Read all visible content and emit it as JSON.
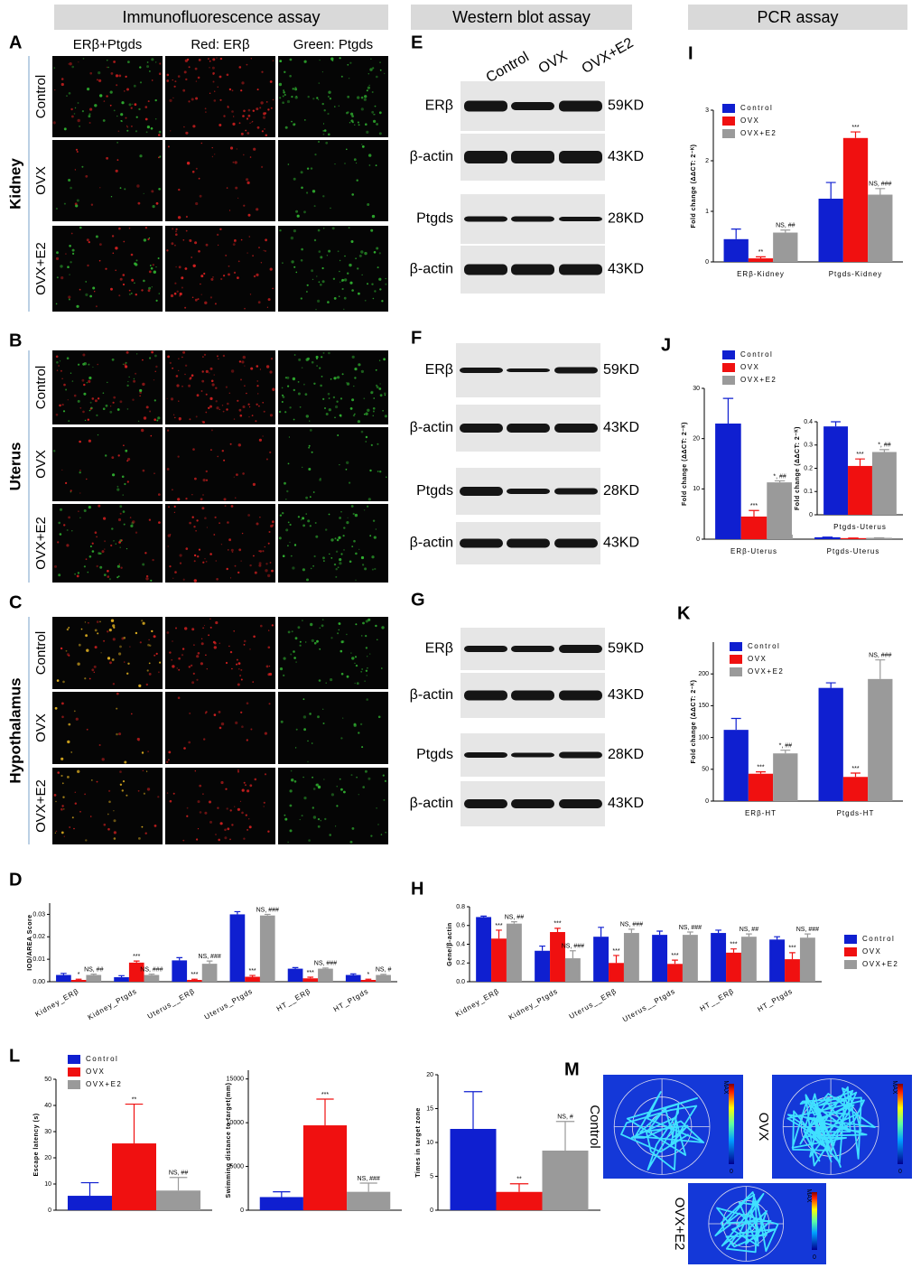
{
  "headers": [
    "Immunofluorescence assay",
    "Western blot assay",
    "PCR  assay"
  ],
  "panel_letters": [
    "A",
    "B",
    "C",
    "D",
    "E",
    "F",
    "G",
    "H",
    "I",
    "J",
    "K",
    "L",
    "M"
  ],
  "immunofluorescence": {
    "columns": [
      "ERβ+Ptgds",
      "Red: ERβ",
      "Green: Ptgds"
    ],
    "tissues": [
      {
        "name": "Kidney",
        "rows": [
          "Control",
          "OVX",
          "OVX+E2"
        ]
      },
      {
        "name": "Uterus",
        "rows": [
          "Control",
          "OVX",
          "OVX+E2"
        ]
      },
      {
        "name": "Hypothalamus",
        "rows": [
          "Control",
          "OVX",
          "OVX+E2"
        ]
      }
    ]
  },
  "western_blot": {
    "lanes": [
      "Control",
      "OVX",
      "OVX+E2"
    ],
    "blots": [
      {
        "rows": [
          {
            "label": "ERβ",
            "size": "59KD"
          },
          {
            "label": "β-actin",
            "size": "43KD"
          },
          {
            "label": "Ptgds",
            "size": "28KD"
          },
          {
            "label": "β-actin",
            "size": "43KD"
          }
        ]
      },
      {
        "rows": [
          {
            "label": "ERβ",
            "size": "59KD"
          },
          {
            "label": "β-actin",
            "size": "43KD"
          },
          {
            "label": "Ptgds",
            "size": "28KD"
          },
          {
            "label": "β-actin",
            "size": "43KD"
          }
        ]
      },
      {
        "rows": [
          {
            "label": "ERβ",
            "size": "59KD"
          },
          {
            "label": "β-actin",
            "size": "43KD"
          },
          {
            "label": "Ptgds",
            "size": "28KD"
          },
          {
            "label": "β-actin",
            "size": "43KD"
          }
        ]
      }
    ]
  },
  "water_maze": {
    "groups": [
      "Control",
      "OVX",
      "OVX+E2"
    ],
    "scale_max": "MAX",
    "scale_min": "0"
  },
  "chart_data": [
    {
      "type": "bar",
      "ylabel": "Fold change (ΔΔCT: 2⁻ᴷ)",
      "categories": [
        "ERβ-Kidney",
        "Ptgds-Kidney"
      ],
      "ylim": [
        0,
        3
      ],
      "yticks": [
        0,
        1,
        2,
        3
      ],
      "legend": "upper left",
      "series": [
        {
          "name": "Control",
          "color": "#0f1fd0",
          "values": [
            0.45,
            1.25
          ],
          "errors": [
            0.2,
            0.32
          ],
          "annotations": [
            null,
            null
          ]
        },
        {
          "name": "OVX",
          "color": "#f01010",
          "values": [
            0.07,
            2.45
          ],
          "errors": [
            0.03,
            0.12
          ],
          "annotations": [
            "**",
            "***"
          ]
        },
        {
          "name": "OVX+E2",
          "color": "#9a9a9a",
          "values": [
            0.58,
            1.33
          ],
          "errors": [
            0.05,
            0.12
          ],
          "annotations": [
            "NS, ##",
            "NS, ###"
          ]
        }
      ]
    },
    {
      "type": "bar",
      "ylabel": "Fold change (ΔΔCT: 2⁻ᴷ)",
      "categories": [
        "ERβ-Uterus",
        "Ptgds-Uterus"
      ],
      "ylim": [
        0,
        30
      ],
      "yticks": [
        0,
        10,
        20,
        30
      ],
      "legend": "upper left",
      "series": [
        {
          "name": "Control",
          "color": "#0f1fd0",
          "values": [
            23,
            0.38
          ],
          "errors": [
            5,
            0.02
          ],
          "annotations": [
            null,
            null
          ]
        },
        {
          "name": "OVX",
          "color": "#f01010",
          "values": [
            4.5,
            0.21
          ],
          "errors": [
            1.2,
            0.03
          ],
          "annotations": [
            "***",
            null
          ]
        },
        {
          "name": "OVX+E2",
          "color": "#9a9a9a",
          "values": [
            11.3,
            0.27
          ],
          "errors": [
            0.3,
            0.01
          ],
          "annotations": [
            "*, ##",
            null
          ]
        }
      ]
    },
    {
      "type": "bar",
      "ylabel": "Fold change (ΔΔCT: 2⁻ᴷ)",
      "categories": [
        "Ptgds-Uterus"
      ],
      "ylim": [
        0,
        0.4
      ],
      "yticks": [
        0,
        0.1,
        0.2,
        0.3,
        0.4
      ],
      "series": [
        {
          "color": "#0f1fd0",
          "values": [
            0.38
          ],
          "errors": [
            0.02
          ],
          "annotations": [
            null
          ]
        },
        {
          "color": "#f01010",
          "values": [
            0.21
          ],
          "errors": [
            0.03
          ],
          "annotations": [
            "***"
          ]
        },
        {
          "color": "#9a9a9a",
          "values": [
            0.27
          ],
          "errors": [
            0.01
          ],
          "annotations": [
            "*, ##"
          ]
        }
      ]
    },
    {
      "type": "bar",
      "ylabel": "Fold change (ΔΔCT: 2⁻ᴷ)",
      "categories": [
        "ERβ-HT",
        "Ptgds-HT"
      ],
      "ylim": [
        0,
        250
      ],
      "yticks": [
        0,
        50,
        100,
        150,
        200
      ],
      "legend": "upper left",
      "series": [
        {
          "name": "Control",
          "color": "#0f1fd0",
          "values": [
            112,
            178
          ],
          "errors": [
            18,
            8
          ],
          "annotations": [
            null,
            null
          ]
        },
        {
          "name": "OVX",
          "color": "#f01010",
          "values": [
            43,
            38
          ],
          "errors": [
            3,
            6
          ],
          "annotations": [
            "***",
            "***"
          ]
        },
        {
          "name": "OVX+E2",
          "color": "#9a9a9a",
          "values": [
            75,
            192
          ],
          "errors": [
            5,
            30
          ],
          "annotations": [
            "*, ##",
            "NS, ###"
          ]
        }
      ]
    },
    {
      "type": "bar",
      "ylabel": "IOD/AREA Score",
      "categories": [
        "Kidney_ERβ",
        "Kidney_Ptgds",
        "Uterus__ERβ",
        "Uterus_Ptgds",
        "HT__ERβ",
        "HT_Ptgds"
      ],
      "ylim": [
        0,
        0.035
      ],
      "yticks": [
        {
          "value": 0,
          "label": "0.00"
        },
        {
          "value": 0.01,
          "label": "0.01"
        },
        {
          "value": 0.02,
          "label": "0.02"
        },
        {
          "value": 0.03,
          "label": "0.03"
        }
      ],
      "series": [
        {
          "name": "Control",
          "color": "#0f1fd0",
          "values": [
            0.003,
            0.002,
            0.0095,
            0.03,
            0.0058,
            0.003
          ],
          "errors": [
            0.0007,
            0.0007,
            0.0012,
            0.0012,
            0.0005,
            0.0005
          ],
          "annotations": [
            null,
            null,
            null,
            null,
            null,
            null
          ]
        },
        {
          "name": "OVX",
          "color": "#f01010",
          "values": [
            0.0008,
            0.0085,
            0.0008,
            0.0022,
            0.0015,
            0.0008
          ],
          "errors": [
            0.0003,
            0.0007,
            0.0003,
            0.0006,
            0.0005,
            0.0003
          ],
          "annotations": [
            "*",
            "***",
            "***",
            "***",
            "***",
            "*"
          ]
        },
        {
          "name": "OVX+E2",
          "color": "#9a9a9a",
          "values": [
            0.003,
            0.003,
            0.008,
            0.0295,
            0.0058,
            0.003
          ],
          "errors": [
            0.0004,
            0.0004,
            0.0012,
            0.0005,
            0.0003,
            0.0003
          ],
          "annotations": [
            "NS, ##",
            "NS, ###",
            "NS, ###",
            "NS, ###",
            "NS, ###",
            "NS, #"
          ]
        }
      ]
    },
    {
      "type": "bar",
      "ylabel": "Gene/β-actin",
      "categories": [
        "Kidney_ERβ",
        "Kidney_Ptgds",
        "Uterus__ERβ",
        "Uterus__Ptgds",
        "HT__ERβ",
        "HT_Ptgds"
      ],
      "ylim": [
        0,
        0.8
      ],
      "yticks": [
        {
          "value": 0,
          "label": "0.0"
        },
        0.2,
        0.4,
        0.6,
        0.8
      ],
      "legend": "right",
      "series": [
        {
          "name": "Control",
          "color": "#0f1fd0",
          "values": [
            0.69,
            0.33,
            0.48,
            0.5,
            0.52,
            0.45
          ],
          "errors": [
            0.01,
            0.05,
            0.1,
            0.04,
            0.03,
            0.03
          ],
          "annotations": [
            null,
            null,
            null,
            null,
            null,
            null
          ]
        },
        {
          "name": "OVX",
          "color": "#f01010",
          "values": [
            0.46,
            0.53,
            0.2,
            0.19,
            0.31,
            0.24
          ],
          "errors": [
            0.09,
            0.04,
            0.08,
            0.04,
            0.04,
            0.07
          ],
          "annotations": [
            "***",
            "***",
            "***",
            "***",
            "***",
            "***"
          ]
        },
        {
          "name": "OVX+E2",
          "color": "#9a9a9a",
          "values": [
            0.62,
            0.25,
            0.52,
            0.5,
            0.48,
            0.47
          ],
          "errors": [
            0.02,
            0.08,
            0.04,
            0.03,
            0.03,
            0.04
          ],
          "annotations": [
            "NS, ##",
            "NS, ###",
            "NS, ###",
            "NS, ###",
            "NS, ##",
            "NS, ###"
          ]
        }
      ]
    },
    {
      "type": "bar",
      "ylabel": "Escape latency (s)",
      "ylim": [
        0,
        50
      ],
      "yticks": [
        0,
        10,
        20,
        30,
        40,
        50
      ],
      "legend": "upper left",
      "series": [
        {
          "name": "Control",
          "color": "#0f1fd0",
          "values": [
            5.5
          ],
          "errors": [
            5
          ],
          "annotations": [
            null
          ]
        },
        {
          "name": "OVX",
          "color": "#f01010",
          "values": [
            25.5
          ],
          "errors": [
            15
          ],
          "annotations": [
            "**"
          ]
        },
        {
          "name": "OVX+E2",
          "color": "#9a9a9a",
          "values": [
            7.5
          ],
          "errors": [
            5
          ],
          "annotations": [
            "NS, ##"
          ]
        }
      ]
    },
    {
      "type": "bar",
      "ylabel": "Swimming distance to target(mm)",
      "ylim": [
        0,
        16000
      ],
      "yticks": [
        0,
        5000,
        10000,
        15000
      ],
      "series": [
        {
          "color": "#0f1fd0",
          "values": [
            1500
          ],
          "errors": [
            600
          ],
          "annotations": [
            null
          ]
        },
        {
          "color": "#f01010",
          "values": [
            9700
          ],
          "errors": [
            3000
          ],
          "annotations": [
            "***"
          ]
        },
        {
          "color": "#9a9a9a",
          "values": [
            2100
          ],
          "errors": [
            1000
          ],
          "annotations": [
            "NS, ###"
          ]
        }
      ]
    },
    {
      "type": "bar",
      "ylabel": "Times in target zone",
      "ylim": [
        0,
        20
      ],
      "yticks": [
        0,
        5,
        10,
        15,
        20
      ],
      "series": [
        {
          "color": "#0f1fd0",
          "values": [
            12
          ],
          "errors": [
            5.5
          ],
          "annotations": [
            null
          ]
        },
        {
          "color": "#f01010",
          "values": [
            2.7
          ],
          "errors": [
            1.2
          ],
          "annotations": [
            "**"
          ]
        },
        {
          "color": "#9a9a9a",
          "values": [
            8.8
          ],
          "errors": [
            4.3
          ],
          "annotations": [
            "NS, #"
          ]
        }
      ]
    }
  ]
}
